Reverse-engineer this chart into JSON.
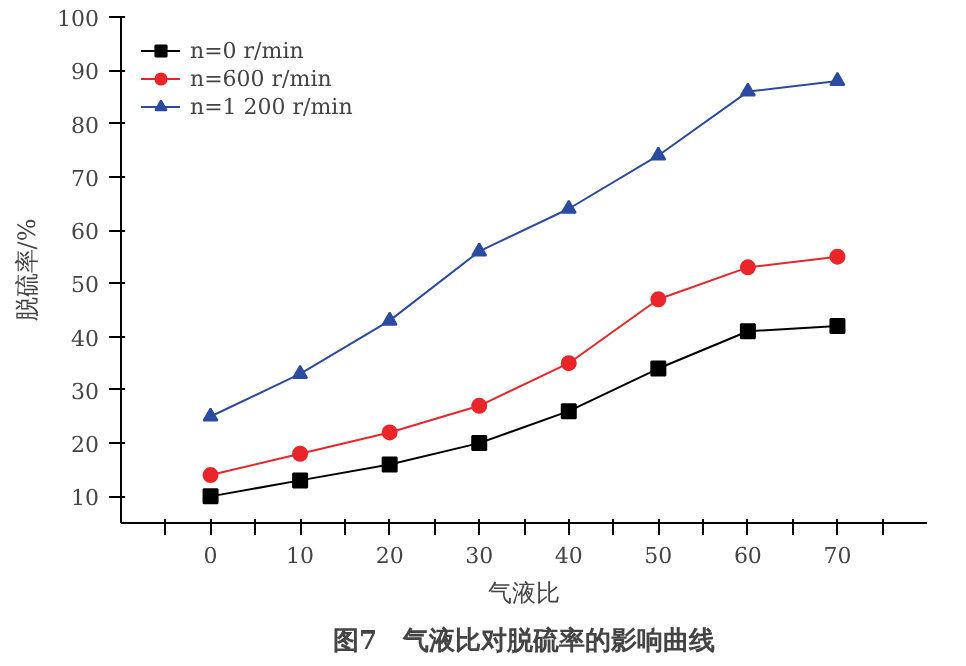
{
  "chart_data": {
    "type": "line",
    "xlabel": "气液比",
    "ylabel": "脱硫率/%",
    "annotations": [
      "图7　气液比对脱硫率的影响曲线"
    ],
    "x": [
      0,
      10,
      20,
      30,
      40,
      50,
      60,
      70
    ],
    "series": [
      {
        "name": "n=0 r/min",
        "color": "#000000",
        "marker": "square",
        "values": [
          10,
          13,
          16,
          20,
          26,
          34,
          41,
          42
        ]
      },
      {
        "name": "n=600 r/min",
        "color": "#e8262a",
        "marker": "circle",
        "values": [
          14,
          18,
          22,
          27,
          35,
          47,
          53,
          55
        ]
      },
      {
        "name": "n=1 200 r/min",
        "color": "#2b4ba0",
        "marker": "triangle",
        "values": [
          25,
          33,
          43,
          56,
          64,
          74,
          86,
          88
        ]
      }
    ],
    "xlim": [
      -10,
      80
    ],
    "ylim": [
      5,
      100
    ],
    "xticks": [
      {
        "value": -5,
        "label": null
      },
      0,
      {
        "value": 5,
        "label": null
      },
      10,
      {
        "value": 15,
        "label": null
      },
      20,
      {
        "value": 25,
        "label": null
      },
      30,
      {
        "value": 35,
        "label": null
      },
      40,
      {
        "value": 45,
        "label": null
      },
      50,
      {
        "value": 55,
        "label": null
      },
      60,
      {
        "value": 65,
        "label": null
      },
      70,
      {
        "value": 75,
        "label": null
      }
    ],
    "yticks": [
      10,
      20,
      30,
      40,
      50,
      60,
      70,
      80,
      90,
      100
    ],
    "grid": false,
    "legend": "top left",
    "line_style": "solid"
  }
}
